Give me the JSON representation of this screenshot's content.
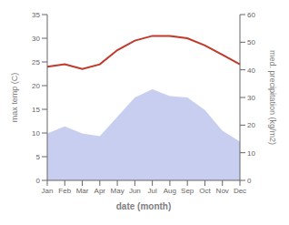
{
  "chart_data": {
    "type": "line",
    "categories": [
      "Jan",
      "Feb",
      "Mar",
      "Apr",
      "May",
      "Jun",
      "Jul",
      "Aug",
      "Sep",
      "Oct",
      "Nov",
      "Dec"
    ],
    "x_label": "date (month)",
    "y_label": "max temp (C)",
    "y2_label": "med. precipitation (kg/m2)",
    "series": [
      {
        "type": "area",
        "axis": "y2",
        "color": "#aab4e8",
        "values": [
          17.0,
          19.5,
          17.0,
          16.0,
          23.0,
          30.0,
          33.0,
          30.5,
          30.0,
          25.5,
          18.0,
          14.0
        ]
      },
      {
        "type": "line",
        "color": "#c0392b",
        "values": [
          24.0,
          24.5,
          23.5,
          24.5,
          27.5,
          29.5,
          30.5,
          30.5,
          30.0,
          28.5,
          26.5,
          24.5
        ]
      }
    ],
    "ylim": [
      0,
      35
    ],
    "yticks": [
      0,
      5,
      10,
      15,
      20,
      25,
      30,
      35
    ],
    "y2lim": [
      0,
      60
    ],
    "y2ticks": [
      0,
      10,
      20,
      30,
      40,
      50,
      60
    ],
    "grid": false
  }
}
